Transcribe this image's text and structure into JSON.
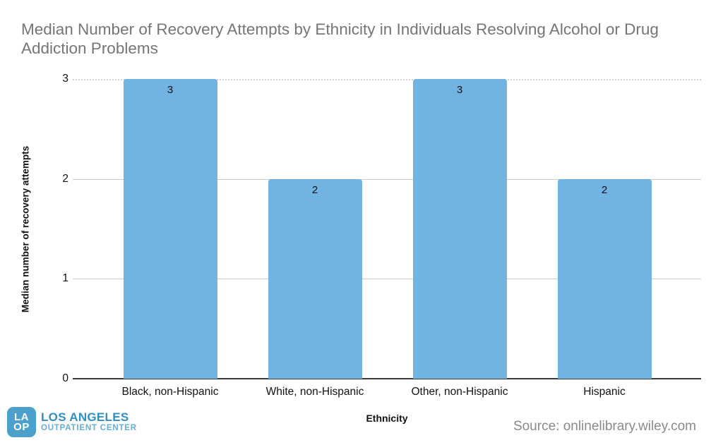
{
  "title": "Median Number of Recovery Attempts by Ethnicity in Individuals Resolving Alcohol or Drug Addiction Problems",
  "chart_data": {
    "type": "bar",
    "categories": [
      "Black, non-Hispanic",
      "White, non-Hispanic",
      "Other, non-Hispanic",
      "Hispanic"
    ],
    "values": [
      3,
      2,
      3,
      2
    ],
    "value_labels": [
      "3",
      "2",
      "3",
      "2"
    ],
    "title": "Median Number of Recovery Attempts by Ethnicity in Individuals Resolving Alcohol or Drug Addiction Problems",
    "xlabel": "Ethnicity",
    "ylabel": "Median number of recovery attempts",
    "yticks": [
      0,
      1,
      2,
      3
    ],
    "ylim": [
      0,
      3
    ],
    "grid": true,
    "legend": "none",
    "bar_color": "#71b4e2"
  },
  "colors": {
    "title_text": "#757575",
    "bar_fill": "#71b4e2",
    "gridline": "#cbcbcb",
    "axis_line": "#3b3b3b",
    "source_text": "#8a8a8a"
  },
  "footer": {
    "source": "Source: onlinelibrary.wiley.com",
    "logo": {
      "monogram_top": "LA",
      "monogram_bottom": "OP",
      "name": "LOS ANGELES",
      "subtitle": "OUTPATIENT CENTER",
      "box_color": "#4ba1cc",
      "name_color": "#2f8fc1",
      "subtitle_color": "#66acd4"
    }
  }
}
